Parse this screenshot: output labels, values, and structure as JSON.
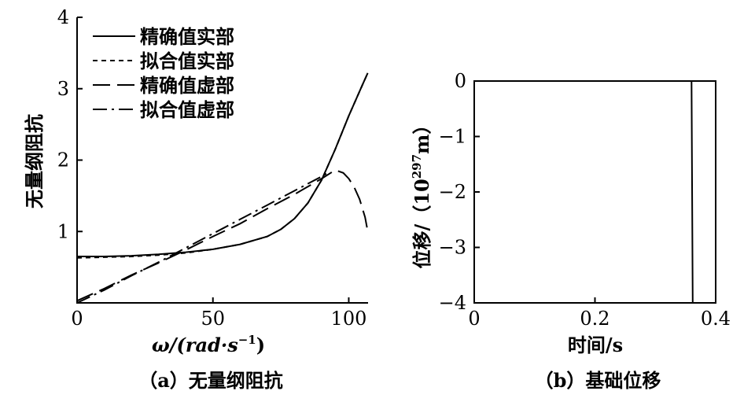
{
  "chart_data": [
    {
      "type": "line",
      "panel_caption": "（a）无量纲阻抗",
      "xlabel": "ω/(rad·s⁻¹)",
      "xlabel_base": "ω/(rad·s",
      "xlabel_sup": "−1",
      "xlabel_close": ")",
      "ylabel": "无量纲阻抗",
      "xlim": [
        0,
        110
      ],
      "ylim": [
        0,
        4
      ],
      "xticks": [
        0,
        50,
        100
      ],
      "yticks": [
        1,
        2,
        3,
        4
      ],
      "xtick_labels": [
        "0",
        "50",
        "100"
      ],
      "ytick_labels": [
        "1",
        "2",
        "3",
        "4"
      ],
      "legend_position": "top-left",
      "series": [
        {
          "name": "精确值实部",
          "dash": "solid",
          "x": [
            0,
            10,
            20,
            30,
            40,
            50,
            60,
            70,
            75,
            80,
            85,
            90,
            95,
            100,
            105,
            107
          ],
          "y": [
            0.65,
            0.65,
            0.66,
            0.68,
            0.71,
            0.75,
            0.82,
            0.93,
            1.03,
            1.18,
            1.4,
            1.72,
            2.15,
            2.62,
            3.05,
            3.22
          ]
        },
        {
          "name": "拟合值实部",
          "dash": "short",
          "x": [
            0,
            10,
            20,
            30,
            40,
            50,
            60,
            70,
            75,
            80,
            85,
            90,
            95,
            100,
            105,
            107
          ],
          "y": [
            0.63,
            0.64,
            0.65,
            0.67,
            0.7,
            0.75,
            0.82,
            0.93,
            1.03,
            1.18,
            1.4,
            1.72,
            2.15,
            2.62,
            3.05,
            3.22
          ]
        },
        {
          "name": "精确值虚部",
          "dash": "long",
          "x": [
            0,
            10,
            20,
            30,
            40,
            50,
            60,
            70,
            80,
            90,
            95,
            98,
            100,
            102,
            104,
            106,
            107
          ],
          "y": [
            0.03,
            0.2,
            0.39,
            0.56,
            0.74,
            0.93,
            1.11,
            1.32,
            1.52,
            1.74,
            1.86,
            1.82,
            1.74,
            1.62,
            1.45,
            1.2,
            1.0
          ]
        },
        {
          "name": "拟合值虚部",
          "dash": "dashdot",
          "x": [
            0,
            10,
            20,
            30,
            40,
            50,
            60,
            70,
            80,
            90,
            93
          ],
          "y": [
            0.0,
            0.18,
            0.38,
            0.57,
            0.77,
            0.97,
            1.17,
            1.37,
            1.57,
            1.77,
            1.84
          ]
        }
      ]
    },
    {
      "type": "line",
      "panel_caption": "（b）基础位移",
      "xlabel": "时间/s",
      "ylabel": "位移/（10²⁹⁷m）",
      "ylabel_main": "位移/（10",
      "ylabel_sup": "297",
      "ylabel_tail": "m）",
      "xlim": [
        0,
        0.4
      ],
      "ylim": [
        -4,
        0
      ],
      "xticks": [
        0,
        0.2,
        0.4
      ],
      "yticks": [
        0,
        -1,
        -2,
        -3,
        -4
      ],
      "xtick_labels": [
        "0",
        "0.2",
        "0.4"
      ],
      "ytick_labels": [
        "0",
        "−1",
        "−2",
        "−3",
        "−4"
      ],
      "series": [
        {
          "dash": "solid",
          "x": [
            0,
            0.36,
            0.362
          ],
          "y": [
            0,
            0,
            -4
          ]
        }
      ]
    }
  ]
}
